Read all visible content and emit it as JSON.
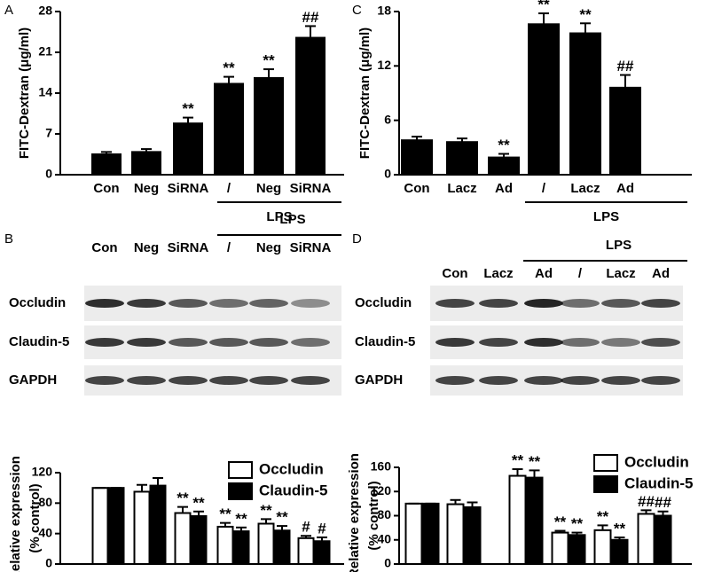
{
  "chart_data": [
    {
      "type": "bar",
      "panel": "A",
      "ylabel": [
        "FITC-Dextran (μg/ml)"
      ],
      "group_label": "LPS",
      "categories": [
        "Con",
        "Neg",
        "SiRNA",
        "/",
        "Neg",
        "SiRNA"
      ],
      "series": [
        {
          "color": "#000000",
          "values": [
            3.5,
            3.9,
            8.8,
            15.6,
            16.6,
            23.5
          ],
          "errors": [
            0.4,
            0.5,
            1.0,
            1.2,
            1.5,
            2.0
          ],
          "annotations": [
            null,
            null,
            "**",
            "**",
            "**",
            "##"
          ]
        }
      ],
      "ylim": [
        0,
        28
      ],
      "yticks": [
        0,
        7,
        14,
        21,
        28
      ]
    },
    {
      "type": "bar",
      "panel": "C",
      "ylabel": [
        "FITC-Dextran (μg/ml)"
      ],
      "group_label": "LPS",
      "categories": [
        "Con",
        "Lacz",
        "Ad",
        "/",
        "Lacz",
        "Ad"
      ],
      "series": [
        {
          "color": "#000000",
          "values": [
            3.8,
            3.6,
            1.9,
            16.6,
            15.6,
            9.6
          ],
          "errors": [
            0.4,
            0.4,
            0.4,
            1.2,
            1.1,
            1.4
          ],
          "annotations": [
            null,
            null,
            "**",
            "**",
            "**",
            "##"
          ]
        }
      ],
      "ylim": [
        0,
        18
      ],
      "yticks": [
        0,
        6,
        12,
        18
      ]
    },
    {
      "type": "bar",
      "ylabel": [
        "Relative expression",
        "(% control)"
      ],
      "categories": [
        null,
        null,
        null,
        null,
        null,
        null
      ],
      "series": [
        {
          "name": "Occludin",
          "color": "#ffffff",
          "values": [
            100,
            95,
            67,
            49,
            53,
            34
          ],
          "errors": [
            0,
            9,
            8,
            5,
            6,
            3
          ],
          "annotations": [
            null,
            null,
            "**",
            "**",
            "**",
            "#"
          ]
        },
        {
          "name": "Claudin-5",
          "color": "#000000",
          "values": [
            100,
            103,
            63,
            43,
            44,
            30
          ],
          "errors": [
            0,
            10,
            6,
            5,
            6,
            5
          ],
          "annotations": [
            null,
            null,
            "**",
            "**",
            "**",
            "#"
          ]
        }
      ],
      "ylim": [
        0,
        120
      ],
      "yticks": [
        0,
        40,
        80,
        120
      ]
    },
    {
      "type": "bar",
      "ylabel": [
        "Relative expression",
        "(% control)"
      ],
      "categories": [
        null,
        null,
        null,
        null,
        null,
        null
      ],
      "series": [
        {
          "name": "Occludin",
          "color": "#ffffff",
          "values": [
            100,
            99,
            146,
            52,
            56,
            83
          ],
          "errors": [
            0,
            7,
            11,
            3,
            8,
            6
          ],
          "annotations": [
            null,
            null,
            "**",
            "**",
            "**",
            "##"
          ]
        },
        {
          "name": "Claudin-5",
          "color": "#000000",
          "values": [
            100,
            94,
            143,
            48,
            40,
            80
          ],
          "errors": [
            0,
            8,
            12,
            4,
            4,
            7
          ],
          "annotations": [
            null,
            null,
            "**",
            "**",
            "**",
            "##"
          ]
        }
      ],
      "ylim": [
        0,
        160
      ],
      "yticks": [
        0,
        40,
        80,
        120,
        160
      ]
    }
  ],
  "blots": [
    {
      "panel": "B",
      "group_label": "LPS",
      "lanes": [
        "Con",
        "Neg",
        "SiRNA",
        "/",
        "Neg",
        "SiRNA"
      ],
      "rows": [
        "Occludin",
        "Claudin-5",
        "GAPDH"
      ]
    },
    {
      "panel": "D",
      "group_label": "LPS",
      "lanes": [
        "Con",
        "Lacz",
        "Ad",
        "/",
        "Lacz",
        "Ad"
      ],
      "rows": [
        "Occludin",
        "Claudin-5",
        "GAPDH"
      ]
    }
  ]
}
